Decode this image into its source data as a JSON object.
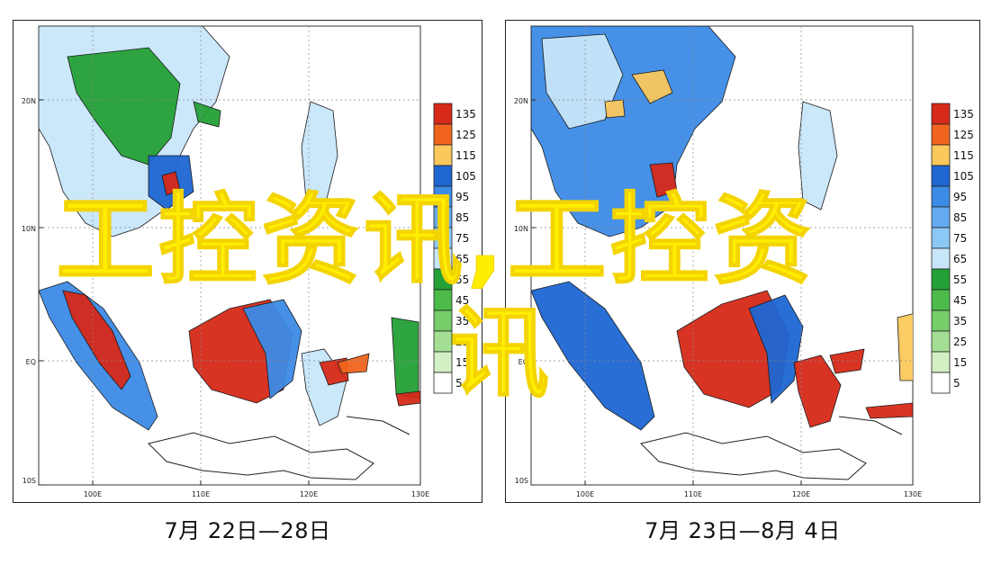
{
  "panels": [
    {
      "id": "left",
      "caption": "7月 22日—28日",
      "axes": {
        "lat_labels": [
          "20N",
          "10N",
          "EQ",
          "10S"
        ],
        "lon_labels": [
          "100E",
          "110E",
          "120E",
          "130E"
        ]
      },
      "legend": {
        "values": [
          "135",
          "125",
          "115",
          "105",
          "95",
          "85",
          "75",
          "65",
          "55",
          "45",
          "35",
          "25",
          "15",
          "5"
        ]
      }
    },
    {
      "id": "right",
      "caption": "7月 23日—8月 4日",
      "axes": {
        "lat_labels": [
          "20N",
          "10N",
          "EQ",
          "10S"
        ],
        "lon_labels": [
          "100E",
          "110E",
          "120E",
          "130E"
        ]
      },
      "legend": {
        "values": [
          "135",
          "125",
          "115",
          "105",
          "95",
          "85",
          "75",
          "65",
          "55",
          "45",
          "35",
          "25",
          "15",
          "5"
        ]
      }
    }
  ],
  "legend_colors": [
    "#d62918",
    "#f0641e",
    "#fbc85c",
    "#1e66d2",
    "#3c8be6",
    "#64aaf0",
    "#8cc8f5",
    "#c8e6fa",
    "#24a036",
    "#4cbb4a",
    "#76cd6a",
    "#a4de94",
    "#d2f0c4",
    "#ffffff"
  ],
  "watermark": {
    "line1": "工控资讯,工控资",
    "line2": "讯",
    "color": "#ffee00"
  }
}
